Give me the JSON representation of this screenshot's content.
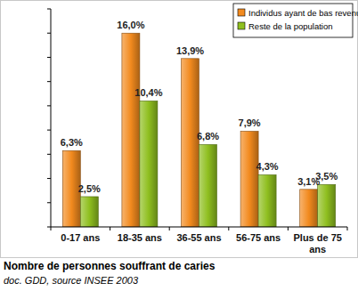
{
  "chart_data": {
    "type": "bar",
    "title": "Nombre de personnes souffrant de caries",
    "subtitle": "doc. GDD, source INSEE 2003",
    "categories": [
      "0-17 ans",
      "18-35 ans",
      "36-55 ans",
      "56-75 ans",
      "Plus de 75 ans"
    ],
    "series": [
      {
        "name": "Individus ayant de bas revenus",
        "color": "#f28a1e",
        "values": [
          6.3,
          16.0,
          13.9,
          7.9,
          3.1
        ],
        "value_labels": [
          "6,3%",
          "16,0%",
          "13,9%",
          "7,9%",
          "3,1%"
        ]
      },
      {
        "name": "Reste de la population",
        "color": "#8fbf1f",
        "values": [
          2.5,
          10.4,
          6.8,
          4.3,
          3.5
        ],
        "value_labels": [
          "2,5%",
          "10,4%",
          "6,8%",
          "4,3%",
          "3,5%"
        ]
      }
    ],
    "ylim": [
      0,
      18
    ],
    "yticks": [
      0,
      2,
      4,
      6,
      8,
      10,
      12,
      14,
      16,
      18
    ],
    "grid": false,
    "legend": "top-right",
    "data_labels": true,
    "tick_labels": "x"
  }
}
